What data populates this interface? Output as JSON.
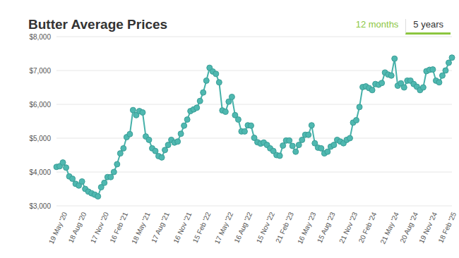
{
  "chart_data": {
    "type": "line",
    "title": "Butter Average Prices",
    "annotations": [
      "12 months",
      "5 years"
    ],
    "categories": [
      null,
      null,
      "19 May '20",
      null,
      null,
      null,
      null,
      null,
      "18 Aug '20",
      null,
      null,
      null,
      null,
      null,
      null,
      "17 Nov '20",
      null,
      null,
      null,
      null,
      null,
      "16 Feb '21",
      null,
      null,
      null,
      null,
      null,
      null,
      "18 May '21",
      null,
      null,
      null,
      null,
      null,
      "17 Aug '21",
      null,
      null,
      null,
      null,
      null,
      null,
      "16 Nov '21",
      null,
      null,
      null,
      null,
      null,
      "15 Feb '22",
      null,
      null,
      null,
      null,
      null,
      null,
      "17 May '22",
      null,
      null,
      null,
      null,
      null,
      "16 Aug '22",
      null,
      null,
      null,
      null,
      null,
      null,
      "15 Nov '22",
      null,
      null,
      null,
      null,
      null,
      "21 Feb '23",
      null,
      null,
      null,
      null,
      null,
      null,
      "16 May '23",
      null,
      null,
      null,
      null,
      null,
      "15 Aug '23",
      null,
      null,
      null,
      null,
      null,
      null,
      "21 Nov '23",
      null,
      null,
      null,
      null,
      null,
      "20 Feb '24",
      null,
      null,
      null,
      null,
      null,
      null,
      "21 May '24",
      null,
      null,
      null,
      null,
      null,
      "20 Aug '24",
      null,
      null,
      null,
      null,
      null,
      "19 Nov '24",
      null,
      null,
      null,
      null,
      null,
      "18 Feb '25"
    ],
    "series": [
      {
        "name": "Butter",
        "color": "#46b1a9",
        "marker": "circle",
        "values": [
          4150,
          4170,
          4280,
          4130,
          3870,
          3800,
          3650,
          3600,
          3720,
          3500,
          3420,
          3370,
          3330,
          3280,
          3550,
          3680,
          3850,
          3850,
          4000,
          4230,
          4550,
          4700,
          5030,
          5120,
          5830,
          5680,
          5800,
          5760,
          5050,
          4950,
          4700,
          4620,
          4470,
          4430,
          4650,
          4800,
          4950,
          4870,
          4900,
          5130,
          5370,
          5550,
          5800,
          5850,
          5900,
          6100,
          6350,
          6700,
          7080,
          6970,
          6900,
          6650,
          5820,
          5780,
          6080,
          6220,
          5680,
          5550,
          5200,
          5200,
          5380,
          5370,
          5010,
          4880,
          4840,
          4870,
          4800,
          4700,
          4620,
          4500,
          4480,
          4780,
          4930,
          4930,
          4770,
          4600,
          4800,
          4950,
          5100,
          5100,
          5380,
          4850,
          4720,
          4700,
          4550,
          4600,
          4750,
          4800,
          4950,
          4900,
          4850,
          4950,
          5000,
          5460,
          5530,
          5920,
          6510,
          6530,
          6480,
          6420,
          6600,
          6580,
          6630,
          6940,
          6880,
          6850,
          7350,
          6550,
          6620,
          6500,
          6700,
          6700,
          6600,
          6520,
          6420,
          6500,
          6980,
          7020,
          7030,
          6700,
          6650,
          6850,
          7000,
          7230,
          7380
        ]
      }
    ],
    "ylim": [
      3000,
      8000
    ],
    "yticks": [
      {
        "value": 3000,
        "label": "$3,000"
      },
      {
        "value": 4000,
        "label": "$4,000"
      },
      {
        "value": 5000,
        "label": "$5,000"
      },
      {
        "value": 6000,
        "label": "$6,000"
      },
      {
        "value": 7000,
        "label": "$7,000"
      },
      {
        "value": 8000,
        "label": "$8,000"
      }
    ],
    "grid": true
  }
}
